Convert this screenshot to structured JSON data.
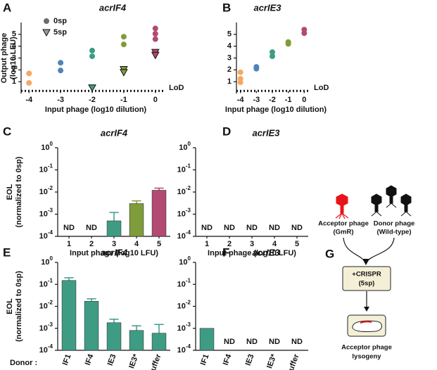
{
  "chart_data": [
    {
      "panel": "A",
      "type": "scatter",
      "title": "acrIF4",
      "xlabel": "Input phage (log10 dilution)",
      "ylabel": [
        "Output phage",
        "(log10 LFU)"
      ],
      "xlim": [
        -4.25,
        0.25
      ],
      "xticks": [
        -4,
        -3,
        -2,
        -1,
        0
      ],
      "ylim": [
        0,
        6
      ],
      "yticks": [
        1,
        2,
        3,
        4,
        5
      ],
      "lod": {
        "value": 0.22,
        "label": "LoD"
      },
      "legend": "upper left",
      "series": [
        {
          "name": "0sp",
          "color": "#6b6b6b",
          "marker": "circle",
          "x": [
            -4,
            -4,
            -3,
            -3,
            -2,
            -2,
            -1,
            -1,
            0,
            0,
            0
          ],
          "values": [
            1.7,
            0.9,
            2.6,
            1.95,
            3.63,
            3.15,
            4.8,
            4.15,
            5.5,
            5.05,
            4.6
          ],
          "colors": [
            "#f6a860",
            "#f6a860",
            "#4f83b8",
            "#4f83b8",
            "#3e9c84",
            "#3e9c84",
            "#7f9c3a",
            "#7f9c3a",
            "#b24a73",
            "#b24a73",
            "#b24a73"
          ]
        },
        {
          "name": "5sp",
          "color": "#9a9a9a",
          "marker": "triangle",
          "x": [
            -2,
            -1,
            -1,
            0,
            0
          ],
          "values": [
            0.5,
            2.05,
            1.8,
            3.5,
            3.25
          ],
          "colors": [
            "#3e9c84",
            "#7f9c3a",
            "#7f9c3a",
            "#b24a73",
            "#b24a73"
          ]
        }
      ]
    },
    {
      "panel": "B",
      "type": "scatter",
      "title": "acrIE3",
      "xlabel": "Input phage (log10 dilution)",
      "xlim": [
        -4.25,
        0.25
      ],
      "xticks": [
        -4,
        -3,
        -2,
        -1,
        0
      ],
      "ylim": [
        0,
        6
      ],
      "yticks": [
        1,
        2,
        3,
        4,
        5
      ],
      "lod": {
        "value": 0.22,
        "label": "LoD"
      },
      "series": [
        {
          "marker": "circle",
          "x": [
            -4,
            -4,
            -4,
            -3,
            -3,
            -2,
            -2,
            -1,
            -1,
            0,
            0
          ],
          "values": [
            1.8,
            1.25,
            0.95,
            2.25,
            2.1,
            3.5,
            3.15,
            4.35,
            4.2,
            5.4,
            5.1
          ],
          "colors": [
            "#f6a860",
            "#f6a860",
            "#f6a860",
            "#4f83b8",
            "#4f83b8",
            "#3e9c84",
            "#3e9c84",
            "#7f9c3a",
            "#7f9c3a",
            "#b24a73",
            "#b24a73"
          ]
        }
      ]
    },
    {
      "panel": "C",
      "type": "bar",
      "title": "acrIF4",
      "xlabel": "Input phage (log10 LFU)",
      "ylabel": [
        "EOL",
        "(normalized to 0sp)"
      ],
      "log_y": true,
      "ylim": [
        0.0001,
        1
      ],
      "yticks": [
        {
          "value": 1,
          "label": {
            "base": "10",
            "exp": "0"
          }
        },
        {
          "value": 0.1,
          "label": {
            "base": "10",
            "exp": "-1"
          }
        },
        {
          "value": 0.01,
          "label": {
            "base": "10",
            "exp": "-2"
          }
        },
        {
          "value": 0.001,
          "label": {
            "base": "10",
            "exp": "-3"
          }
        },
        {
          "value": 0.0001,
          "label": {
            "base": "10",
            "exp": "-4"
          }
        }
      ],
      "categories": [
        "1",
        "2",
        "3",
        "4",
        "5"
      ],
      "values": [
        null,
        null,
        0.0005,
        0.003,
        0.012
      ],
      "errors": [
        null,
        null,
        0.0007,
        0.001,
        0.003
      ],
      "colors": [
        null,
        null,
        "#3e9c84",
        "#7f9c3a",
        "#b24a73"
      ],
      "value_labels": [
        "ND",
        "ND",
        null,
        null,
        null
      ]
    },
    {
      "panel": "D",
      "type": "bar",
      "title": "acrIE3",
      "xlabel": "Input phage (log10 LFU)",
      "log_y": true,
      "ylim": [
        0.0001,
        1
      ],
      "yticks": [
        {
          "value": 1,
          "label": {
            "base": "10",
            "exp": "0"
          }
        },
        {
          "value": 0.1,
          "label": {
            "base": "10",
            "exp": "-1"
          }
        },
        {
          "value": 0.01,
          "label": {
            "base": "10",
            "exp": "-2"
          }
        },
        {
          "value": 0.001,
          "label": {
            "base": "10",
            "exp": "-3"
          }
        },
        {
          "value": 0.0001,
          "label": {
            "base": "10",
            "exp": "-4"
          }
        }
      ],
      "categories": [
        "1",
        "2",
        "3",
        "4",
        "5"
      ],
      "values": [
        null,
        null,
        null,
        null,
        null
      ],
      "value_labels": [
        "ND",
        "ND",
        "ND",
        "ND",
        "ND"
      ]
    },
    {
      "panel": "E",
      "type": "bar",
      "title": "acrIF4",
      "xlabel": "Donor :",
      "ylabel": [
        "EOL",
        "(normalized to 0sp)"
      ],
      "log_y": true,
      "rotate_xlabels": true,
      "ylim": [
        0.0001,
        1
      ],
      "yticks": [
        {
          "value": 1,
          "label": {
            "base": "10",
            "exp": "0"
          }
        },
        {
          "value": 0.1,
          "label": {
            "base": "10",
            "exp": "-1"
          }
        },
        {
          "value": 0.01,
          "label": {
            "base": "10",
            "exp": "-2"
          }
        },
        {
          "value": 0.001,
          "label": {
            "base": "10",
            "exp": "-3"
          }
        },
        {
          "value": 0.0001,
          "label": {
            "base": "10",
            "exp": "-4"
          }
        }
      ],
      "categories": [
        "IF1",
        "IF4",
        "IE3",
        "IE3*",
        "Buffer"
      ],
      "values": [
        0.15,
        0.017,
        0.0018,
        0.0008,
        0.0006
      ],
      "errors": [
        0.05,
        0.005,
        0.0008,
        0.0005,
        0.0009
      ],
      "color": "#3e9c84"
    },
    {
      "panel": "F",
      "type": "bar",
      "title": "acrIE3",
      "log_y": true,
      "rotate_xlabels": true,
      "ylim": [
        0.0001,
        1
      ],
      "yticks": [
        {
          "value": 1,
          "label": {
            "base": "10",
            "exp": "0"
          }
        },
        {
          "value": 0.1,
          "label": {
            "base": "10",
            "exp": "-1"
          }
        },
        {
          "value": 0.01,
          "label": {
            "base": "10",
            "exp": "-2"
          }
        },
        {
          "value": 0.001,
          "label": {
            "base": "10",
            "exp": "-3"
          }
        },
        {
          "value": 0.0001,
          "label": {
            "base": "10",
            "exp": "-4"
          }
        }
      ],
      "categories": [
        "IF1",
        "IF4",
        "IE3",
        "IE3*",
        "Buffer"
      ],
      "values": [
        0.001,
        null,
        null,
        null,
        null
      ],
      "color": "#3e9c84",
      "value_labels": [
        null,
        "ND",
        "ND",
        "ND",
        "ND"
      ]
    }
  ],
  "diagram": {
    "panel": "G",
    "acceptor": [
      "Acceptor phage",
      "(GmR)"
    ],
    "donor": [
      "Donor phage",
      "(Wild-type)"
    ],
    "step": [
      "+CRISPR",
      "(5sp)"
    ],
    "result": [
      "Acceptor phage",
      "lysogeny"
    ]
  }
}
